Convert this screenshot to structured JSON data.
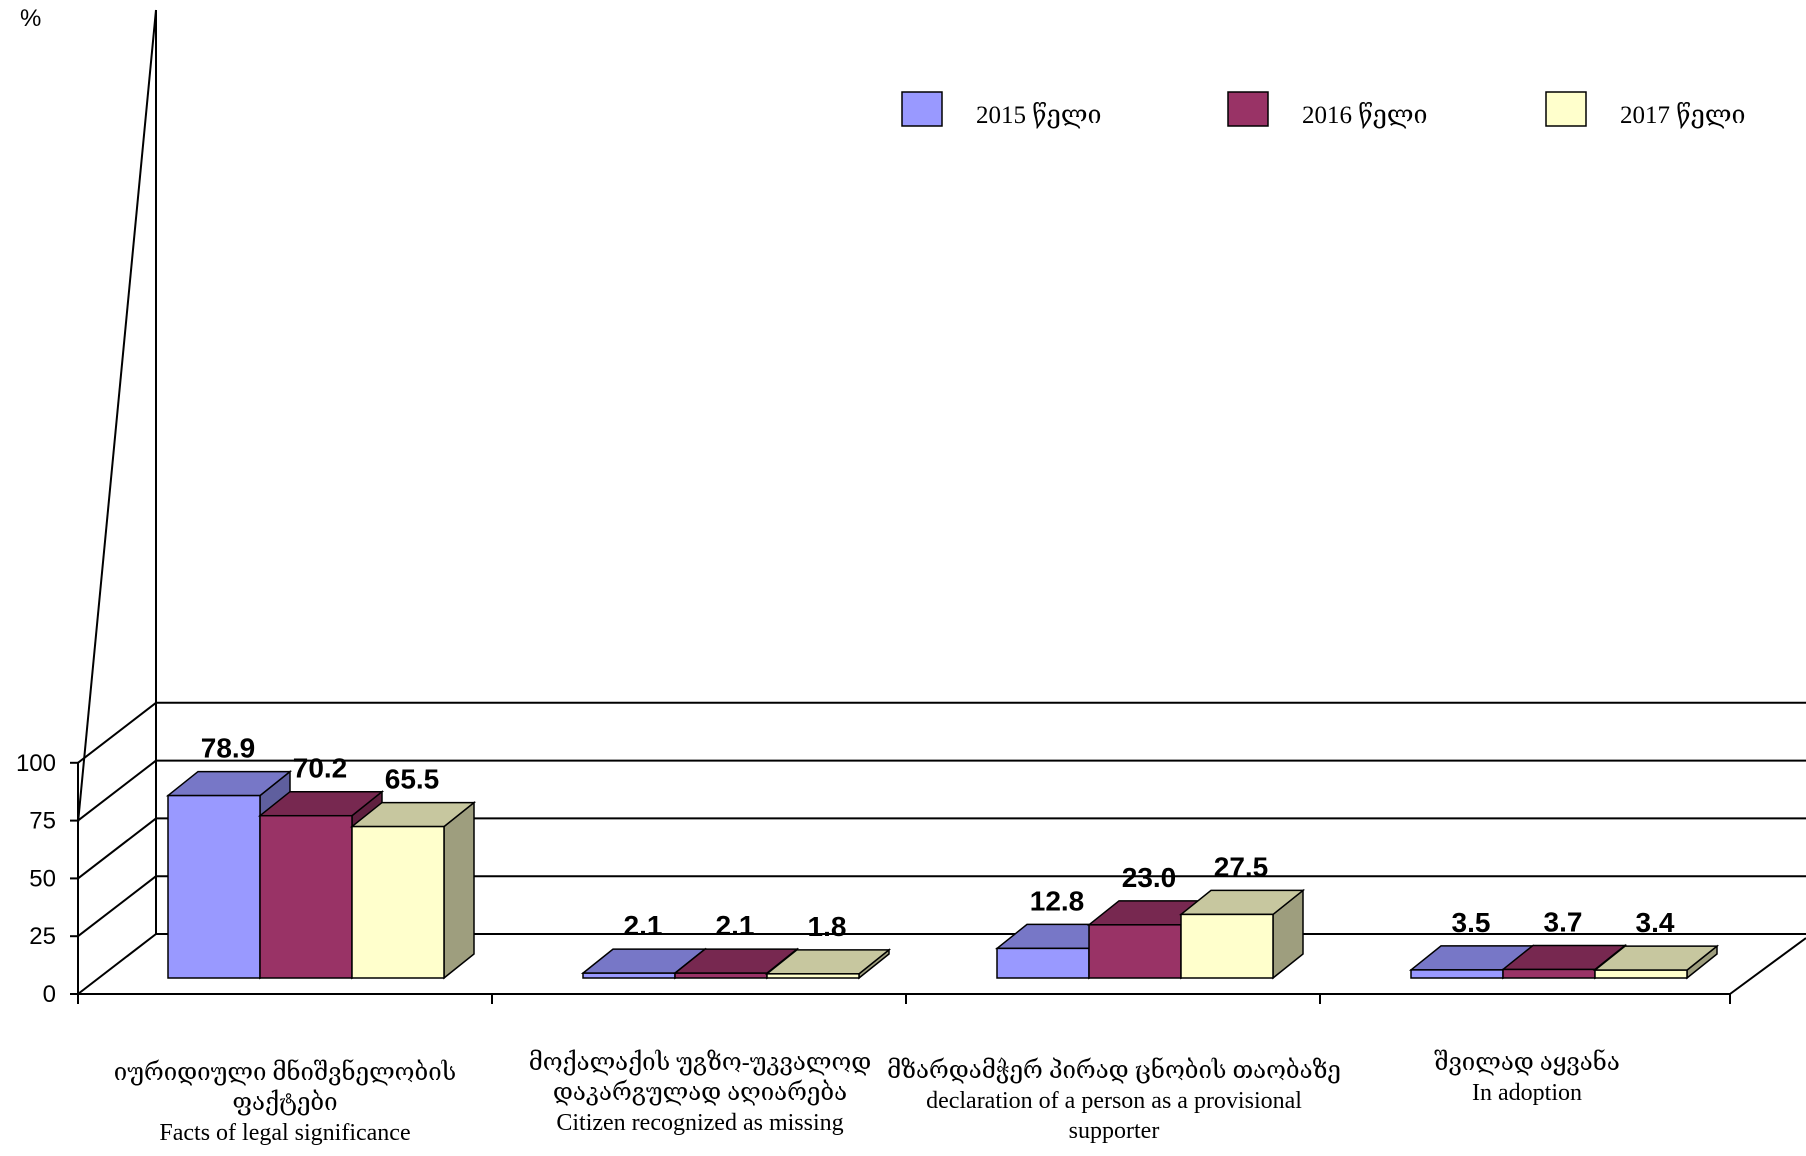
{
  "chart_data": {
    "type": "bar",
    "ylabel": "%",
    "ylim": [
      0,
      100
    ],
    "yticks": [
      "0",
      "25",
      "50",
      "75",
      "100"
    ],
    "categories": [
      [
        "იურიდიული მნიშვნელობის",
        "ფაქტები",
        "Facts of  legal significance"
      ],
      [
        "მოქალაქის უგზო-უკვალოდ",
        "დაკარგულად აღიარება",
        "Citizen recognized as missing"
      ],
      [
        "მზარდამჭერ პირად ცნობის თაობაზე",
        "declaration of a person as a provisional",
        "supporter"
      ],
      [
        "შვილად აყვანა",
        "In adoption"
      ]
    ],
    "series": [
      {
        "name": "2015 წელი",
        "values": [
          78.9,
          2.1,
          12.8,
          3.5
        ],
        "labels": [
          "78.9",
          "2.1",
          "12.8",
          "3.5"
        ],
        "color": "#9999ff"
      },
      {
        "name": "2016 წელი",
        "values": [
          70.2,
          2.1,
          23.0,
          3.7
        ],
        "labels": [
          "70.2",
          "2.1",
          "23.0",
          "3.7"
        ],
        "color": "#993366"
      },
      {
        "name": "2017 წელი",
        "values": [
          65.5,
          1.8,
          27.5,
          3.4
        ],
        "labels": [
          "65.5",
          "1.8",
          "27.5",
          "3.4"
        ],
        "color": "#ffffcc"
      }
    ],
    "grid": true,
    "legend": "top-right"
  }
}
